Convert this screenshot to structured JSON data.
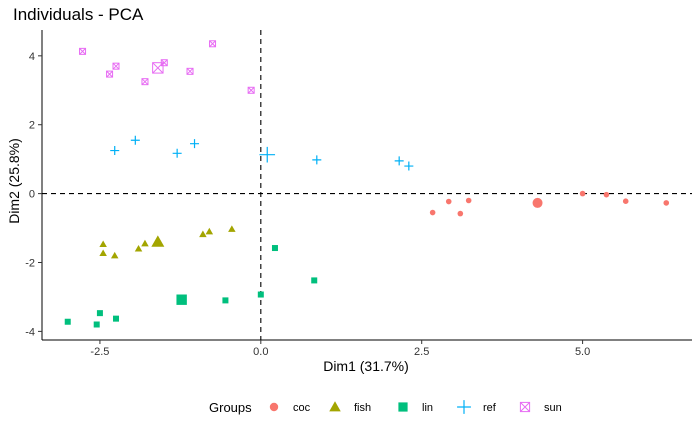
{
  "chart_data": {
    "type": "scatter",
    "title": "Individuals - PCA",
    "xlabel": "Dim1 (31.7%)",
    "ylabel": "Dim2 (25.8%)",
    "xlim": [
      -3.4,
      6.7
    ],
    "ylim": [
      -4.25,
      4.75
    ],
    "xticks": [
      -2.5,
      0.0,
      2.5,
      5.0
    ],
    "xtick_labels": [
      "-2.5",
      "0.0",
      "2.5",
      "5.0"
    ],
    "yticks": [
      -4,
      -2,
      0,
      2,
      4
    ],
    "ytick_labels": [
      "-4",
      "-2",
      "0",
      "2",
      "4"
    ],
    "grid": false,
    "reference_lines": {
      "x": 0,
      "y": 0,
      "style": "dashed"
    },
    "legend": {
      "title": "Groups",
      "position": "bottom"
    },
    "series": [
      {
        "name": "coc",
        "color": "#F8766D",
        "marker": "circle",
        "points": [
          [
            2.67,
            -0.55
          ],
          [
            2.92,
            -0.23
          ],
          [
            3.1,
            -0.58
          ],
          [
            3.23,
            -0.2
          ],
          [
            5.0,
            0.0
          ],
          [
            5.37,
            -0.03
          ],
          [
            5.67,
            -0.22
          ],
          [
            6.3,
            -0.27
          ]
        ],
        "centroid": [
          4.3,
          -0.27
        ]
      },
      {
        "name": "fish",
        "color": "#A3A500",
        "marker": "triangle",
        "points": [
          [
            -2.45,
            -1.47
          ],
          [
            -2.45,
            -1.73
          ],
          [
            -2.27,
            -1.8
          ],
          [
            -1.9,
            -1.6
          ],
          [
            -1.8,
            -1.45
          ],
          [
            -0.9,
            -1.18
          ],
          [
            -0.8,
            -1.1
          ],
          [
            -0.45,
            -1.03
          ]
        ],
        "centroid": [
          -1.6,
          -1.4
        ]
      },
      {
        "name": "lin",
        "color": "#00BF7D",
        "marker": "square",
        "points": [
          [
            -3.0,
            -3.72
          ],
          [
            -2.55,
            -3.8
          ],
          [
            -2.5,
            -3.47
          ],
          [
            -2.25,
            -3.63
          ],
          [
            -0.55,
            -3.1
          ],
          [
            0.0,
            -2.93
          ],
          [
            0.22,
            -1.58
          ],
          [
            0.83,
            -2.52
          ]
        ],
        "centroid": [
          -1.23,
          -3.08
        ]
      },
      {
        "name": "ref",
        "color": "#00B0F6",
        "marker": "plus",
        "points": [
          [
            -2.27,
            1.25
          ],
          [
            -1.95,
            1.55
          ],
          [
            -1.3,
            1.17
          ],
          [
            -1.03,
            1.45
          ],
          [
            0.87,
            0.98
          ],
          [
            2.15,
            0.95
          ],
          [
            2.3,
            0.8
          ]
        ],
        "centroid": [
          0.1,
          1.13
        ]
      },
      {
        "name": "sun",
        "color": "#E76BF3",
        "marker": "square-cross",
        "points": [
          [
            -2.77,
            4.13
          ],
          [
            -2.35,
            3.47
          ],
          [
            -2.25,
            3.7
          ],
          [
            -1.8,
            3.25
          ],
          [
            -1.5,
            3.8
          ],
          [
            -1.1,
            3.55
          ],
          [
            -0.75,
            4.35
          ],
          [
            -0.15,
            3.0
          ]
        ],
        "centroid": [
          -1.6,
          3.65
        ]
      }
    ]
  }
}
